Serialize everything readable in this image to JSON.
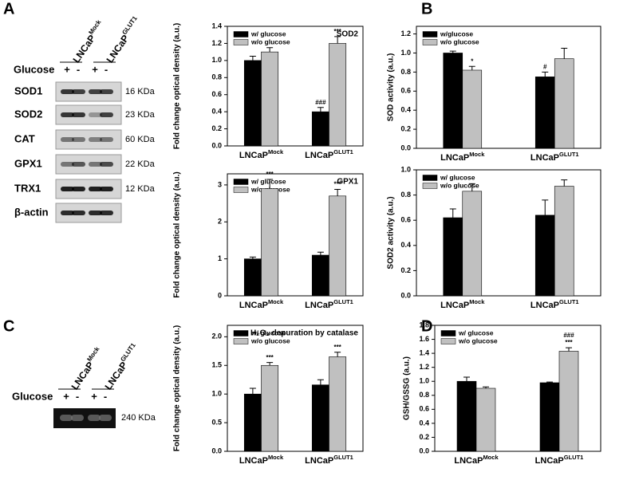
{
  "panel_letters": [
    "A",
    "B",
    "C",
    "D"
  ],
  "blots": {
    "groups": [
      "Mock",
      "GLUT1"
    ],
    "group_base": "LNCaP",
    "condition": "Glucose",
    "signs": [
      "+",
      "-",
      "+",
      "-"
    ],
    "rows": [
      {
        "protein": "SOD1",
        "size": "16 KDa"
      },
      {
        "protein": "SOD2",
        "size": "23 KDa"
      },
      {
        "protein": "CAT",
        "size": "60 KDa"
      },
      {
        "protein": "GPX1",
        "size": "22 KDa"
      },
      {
        "protein": "TRX1",
        "size": "12 KDa"
      },
      {
        "protein": "β-actin",
        "size": null
      }
    ],
    "catalase_gel": {
      "groups": [
        "Mock",
        "GLUT1"
      ],
      "group_base": "LNCaP",
      "condition": "Glucose",
      "signs": [
        "+",
        "-",
        "+",
        "-"
      ],
      "size": "240 KDa"
    }
  },
  "chart_data": [
    {
      "type": "bar",
      "title": "SOD2",
      "y_label": "Fold change optical density (a.u.)",
      "category_base": [
        "LNCaP",
        "LNCaP"
      ],
      "categories": [
        "Mock",
        "GLUT1"
      ],
      "ylim": [
        0,
        1.4
      ],
      "yticks": [
        {
          "value": 0,
          "label": "0.0"
        },
        0.2,
        0.4,
        0.6,
        0.8,
        {
          "value": 1,
          "label": "1.0"
        },
        1.2,
        1.4
      ],
      "series": [
        {
          "name": "w/ glucose",
          "color": "#000000",
          "values": [
            1.0,
            0.4
          ],
          "errors": [
            0.05,
            0.05
          ],
          "annotations": [
            null,
            "###"
          ]
        },
        {
          "name": "w/o glucose",
          "color": "#c0c0c0",
          "values": [
            1.1,
            1.2
          ],
          "errors": [
            0.05,
            0.08
          ],
          "annotations": [
            null,
            "***"
          ]
        }
      ]
    },
    {
      "type": "bar",
      "title": "GPX1",
      "y_label": "Fold change optical density (a.u.)",
      "category_base": [
        "LNCaP",
        "LNCaP"
      ],
      "categories": [
        "Mock",
        "GLUT1"
      ],
      "ylim": [
        0,
        3.3
      ],
      "yticks": [
        0,
        1,
        2,
        3
      ],
      "series": [
        {
          "name": "w/ glucose",
          "color": "#000000",
          "values": [
            1.0,
            1.1
          ],
          "errors": [
            0.05,
            0.08
          ],
          "annotations": [
            null,
            null
          ]
        },
        {
          "name": "w/o glucose",
          "color": "#c0c0c0",
          "values": [
            2.9,
            2.7
          ],
          "errors": [
            0.25,
            0.18
          ],
          "annotations": [
            "***",
            "***"
          ]
        }
      ]
    },
    {
      "type": "bar",
      "title": null,
      "y_label": "SOD activity (a.u.)",
      "category_base": [
        "LNCaP",
        "LNCaP"
      ],
      "categories": [
        "Mock",
        "GLUT1"
      ],
      "ylim": [
        0,
        1.28
      ],
      "yticks": [
        {
          "value": 0,
          "label": "0.0"
        },
        0.2,
        0.4,
        0.6,
        0.8,
        {
          "value": 1,
          "label": "1.0"
        },
        1.2
      ],
      "series": [
        {
          "name": "w/glucose",
          "color": "#000000",
          "values": [
            1.0,
            0.75
          ],
          "errors": [
            0.02,
            0.05
          ],
          "annotations": [
            null,
            "#"
          ]
        },
        {
          "name": "w/o glucose",
          "color": "#c0c0c0",
          "values": [
            0.82,
            0.94
          ],
          "errors": [
            0.04,
            0.11
          ],
          "annotations": [
            "*",
            null
          ]
        }
      ]
    },
    {
      "type": "bar",
      "title": null,
      "y_label": "SOD2 activity (a.u.)",
      "category_base": [
        "LNCaP",
        "LNCaP"
      ],
      "categories": [
        "Mock",
        "GLUT1"
      ],
      "ylim": [
        0,
        1.0
      ],
      "yticks": [
        {
          "value": 0,
          "label": "0.0"
        },
        0.2,
        0.4,
        0.6,
        0.8,
        {
          "value": 1,
          "label": "1.0"
        }
      ],
      "series": [
        {
          "name": "w/ glucose",
          "color": "#000000",
          "values": [
            0.62,
            0.64
          ],
          "errors": [
            0.07,
            0.12
          ],
          "annotations": [
            null,
            null
          ]
        },
        {
          "name": "w/o glucose",
          "color": "#c0c0c0",
          "values": [
            0.83,
            0.87
          ],
          "errors": [
            0.06,
            0.05
          ],
          "annotations": [
            null,
            null
          ]
        }
      ]
    },
    {
      "type": "bar",
      "title": "H₂O₂ depuration by catalase",
      "y_label": "Fold change optical density (a.u.)",
      "category_base": [
        "LNCaP",
        "LNCaP"
      ],
      "categories": [
        "Mock",
        "GLUT1"
      ],
      "ylim": [
        0,
        2.2
      ],
      "yticks": [
        {
          "value": 0,
          "label": "0.0"
        },
        0.5,
        {
          "value": 1,
          "label": "1.0"
        },
        1.5,
        {
          "value": 2,
          "label": "2.0"
        }
      ],
      "series": [
        {
          "name": "w/ glucose",
          "color": "#000000",
          "values": [
            1.0,
            1.16
          ],
          "errors": [
            0.1,
            0.09
          ],
          "annotations": [
            null,
            null
          ]
        },
        {
          "name": "w/o glucose",
          "color": "#c0c0c0",
          "values": [
            1.5,
            1.65
          ],
          "errors": [
            0.05,
            0.08
          ],
          "annotations": [
            "***",
            "***"
          ]
        }
      ]
    },
    {
      "type": "bar",
      "title": null,
      "y_label": "GSH/GSSG (a.u.)",
      "category_base": [
        "LNCaP",
        "LNCaP"
      ],
      "categories": [
        "Mock",
        "GLUT1"
      ],
      "ylim": [
        0,
        1.8
      ],
      "yticks": [
        {
          "value": 0,
          "label": "0.0"
        },
        0.2,
        0.4,
        0.6,
        0.8,
        {
          "value": 1,
          "label": "1.0"
        },
        1.2,
        1.4,
        1.6,
        1.8
      ],
      "series": [
        {
          "name": "w/ glucose",
          "color": "#000000",
          "values": [
            1.0,
            0.98
          ],
          "errors": [
            0.06,
            0.01
          ],
          "annotations": [
            null,
            null
          ]
        },
        {
          "name": "w/o glucose",
          "color": "#c0c0c0",
          "values": [
            0.9,
            1.43
          ],
          "errors": [
            0.02,
            0.05
          ],
          "annotations": [
            null,
            [
              "###",
              "***"
            ]
          ]
        }
      ]
    }
  ]
}
